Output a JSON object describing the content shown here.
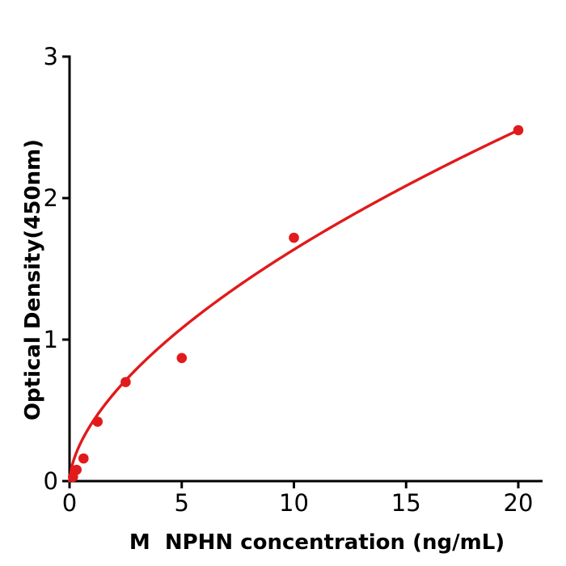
{
  "figure": {
    "background_color": "#ffffff",
    "axis_color": "#000000",
    "tick_label_color": "#000000",
    "accent_color": "#e11a1b"
  },
  "chart_data": {
    "type": "scatter",
    "title": "",
    "xlabel": "M  NPHN concentration (ng/mL)",
    "ylabel": "Optical Density(450nm)",
    "xlim": [
      0,
      21.1
    ],
    "ylim": [
      0,
      3
    ],
    "x_ticks": [
      0,
      5,
      10,
      15,
      20
    ],
    "y_ticks": [
      0,
      1,
      2,
      3
    ],
    "grid": false,
    "legend_position": "none",
    "series": [
      {
        "name": "standard-points",
        "type": "scatter",
        "marker": "circle",
        "color": "#e11a1b",
        "x": [
          0.156,
          0.313,
          0.625,
          1.25,
          2.5,
          5,
          10,
          20
        ],
        "y": [
          0.03,
          0.08,
          0.16,
          0.42,
          0.7,
          0.87,
          1.72,
          2.48
        ]
      },
      {
        "name": "fit-curve",
        "type": "line",
        "color": "#e11a1b",
        "fit_model": "power",
        "fit_k": 0.411,
        "fit_p": 0.6,
        "x_range": [
          0,
          20
        ]
      }
    ]
  }
}
